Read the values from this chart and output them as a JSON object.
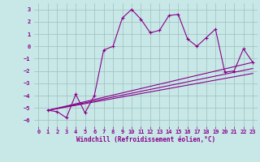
{
  "xlabel": "Windchill (Refroidissement éolien,°C)",
  "background_color": "#c8e8e8",
  "line_color": "#880088",
  "xlim": [
    -0.5,
    23.5
  ],
  "ylim": [
    -6.5,
    3.5
  ],
  "yticks": [
    -6,
    -5,
    -4,
    -3,
    -2,
    -1,
    0,
    1,
    2,
    3
  ],
  "xticks": [
    0,
    1,
    2,
    3,
    4,
    5,
    6,
    7,
    8,
    9,
    10,
    11,
    12,
    13,
    14,
    15,
    16,
    17,
    18,
    19,
    20,
    21,
    22,
    23
  ],
  "series": [
    {
      "x": [
        1,
        2,
        3,
        4,
        5,
        6,
        7,
        8,
        9,
        10,
        11,
        12,
        13,
        14,
        15,
        16,
        17,
        18,
        19,
        20,
        21,
        22,
        23
      ],
      "y": [
        -5.2,
        -5.3,
        -5.8,
        -3.9,
        -5.4,
        -4.0,
        -0.3,
        0.0,
        2.3,
        3.0,
        2.2,
        1.1,
        1.3,
        2.5,
        2.6,
        0.6,
        0.0,
        0.7,
        1.4,
        -2.1,
        -2.0,
        -0.2,
        -1.3
      ],
      "has_markers": true
    },
    {
      "x": [
        1,
        23
      ],
      "y": [
        -5.2,
        -1.3
      ],
      "has_markers": false
    },
    {
      "x": [
        1,
        23
      ],
      "y": [
        -5.2,
        -1.8
      ],
      "has_markers": false
    },
    {
      "x": [
        1,
        23
      ],
      "y": [
        -5.2,
        -2.2
      ],
      "has_markers": false
    }
  ]
}
